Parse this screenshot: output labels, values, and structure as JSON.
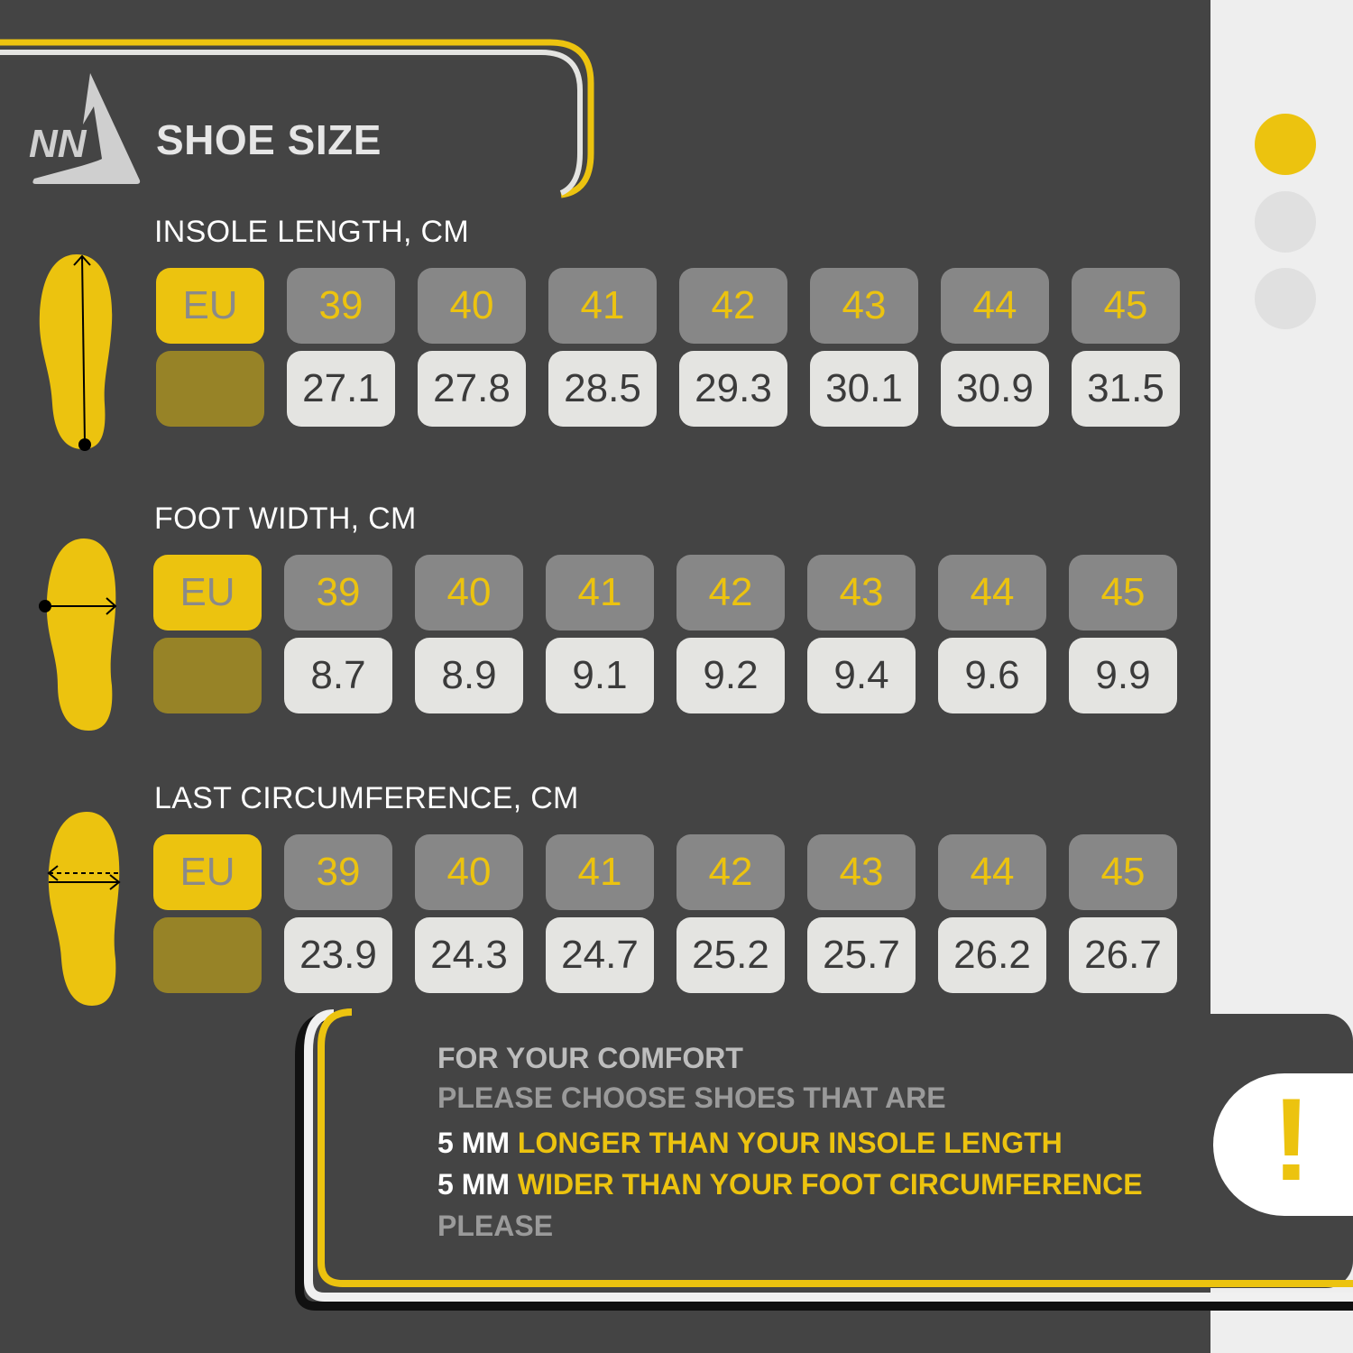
{
  "header": {
    "title": "SHOE SIZE",
    "logo_text": "NN"
  },
  "colors": {
    "background": "#444444",
    "accent": "#ecc30f",
    "size_cell": "#878787",
    "value_cell": "#e4e4e1",
    "eu_empty": "#978327"
  },
  "pager": {
    "dots": 3,
    "active_index": 0
  },
  "sections": [
    {
      "label": "INSOLE LENGTH, CM",
      "icon": "insole-length-icon",
      "eu_label": "EU",
      "sizes": [
        "39",
        "40",
        "41",
        "42",
        "43",
        "44",
        "45"
      ],
      "values": [
        "27.1",
        "27.8",
        "28.5",
        "29.3",
        "30.1",
        "30.9",
        "31.5"
      ]
    },
    {
      "label": "FOOT WIDTH, CM",
      "icon": "foot-width-icon",
      "eu_label": "EU",
      "sizes": [
        "39",
        "40",
        "41",
        "42",
        "43",
        "44",
        "45"
      ],
      "values": [
        "8.7",
        "8.9",
        "9.1",
        "9.2",
        "9.4",
        "9.6",
        "9.9"
      ]
    },
    {
      "label": "LAST CIRCUMFERENCE, CM",
      "icon": "circumference-icon",
      "eu_label": "EU",
      "sizes": [
        "39",
        "40",
        "41",
        "42",
        "43",
        "44",
        "45"
      ],
      "values": [
        "23.9",
        "24.3",
        "24.7",
        "25.2",
        "25.7",
        "26.2",
        "26.7"
      ]
    }
  ],
  "note": {
    "line1": "FOR YOUR COMFORT",
    "line2": "PLEASE CHOOSE SHOES THAT ARE",
    "line3_prefix": "5 MM",
    "line3_rest": "LONGER THAN YOUR INSOLE LENGTH",
    "line4_prefix": "5 MM",
    "line4_rest": "WIDER THAN YOUR FOOT CIRCUMFERENCE",
    "line5": "PLEASE",
    "badge_symbol": "!"
  }
}
